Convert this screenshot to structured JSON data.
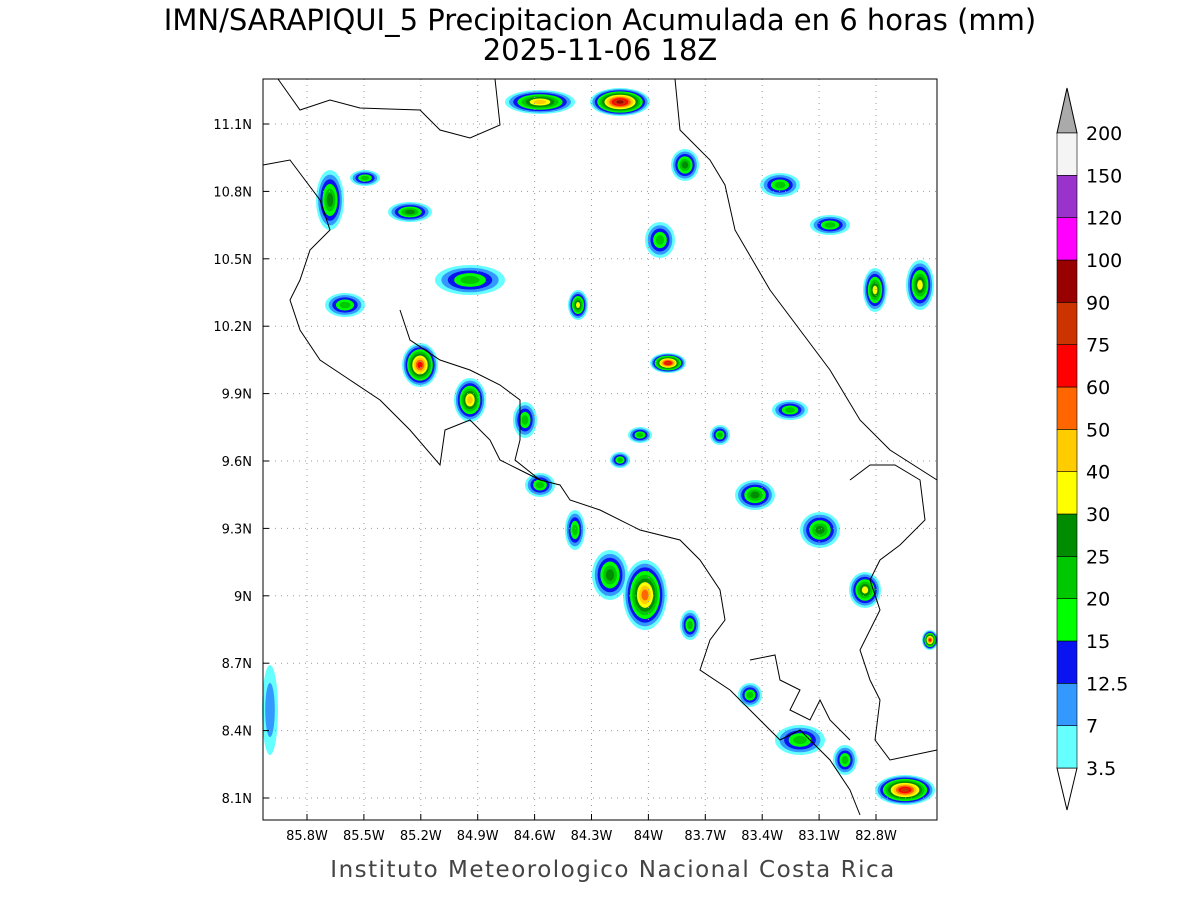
{
  "header": {
    "title": "IMN/SARAPIQUI_5 Precipitacion Acumulada en 6 horas (mm)",
    "subtitle": "2025-11-06 18Z"
  },
  "map": {
    "lon_labels": [
      "85.8W",
      "85.5W",
      "85.2W",
      "84.9W",
      "84.6W",
      "84.3W",
      "84W",
      "83.7W",
      "83.4W",
      "83.1W",
      "82.8W"
    ],
    "lat_labels": [
      "11.1N",
      "10.8N",
      "10.5N",
      "10.2N",
      "9.9N",
      "9.6N",
      "9.3N",
      "9N",
      "8.7N",
      "8.4N",
      "8.1N"
    ]
  },
  "colorbar": {
    "levels": [
      3.5,
      7,
      12.5,
      15,
      20,
      25,
      30,
      40,
      50,
      60,
      75,
      90,
      100,
      120,
      150,
      200
    ],
    "colors": [
      "#66ffff",
      "#3399ff",
      "#0a14f0",
      "#00ff00",
      "#00c800",
      "#008c00",
      "#ffff00",
      "#ffcc00",
      "#ff6600",
      "#ff0000",
      "#cc3300",
      "#990000",
      "#ff00ff",
      "#9933cc",
      "#f4f4f4"
    ],
    "under_color": "#ffffff",
    "over_color": "#aaaaaa"
  },
  "footer": "Instituto Meteorologico Nacional Costa Rica"
}
